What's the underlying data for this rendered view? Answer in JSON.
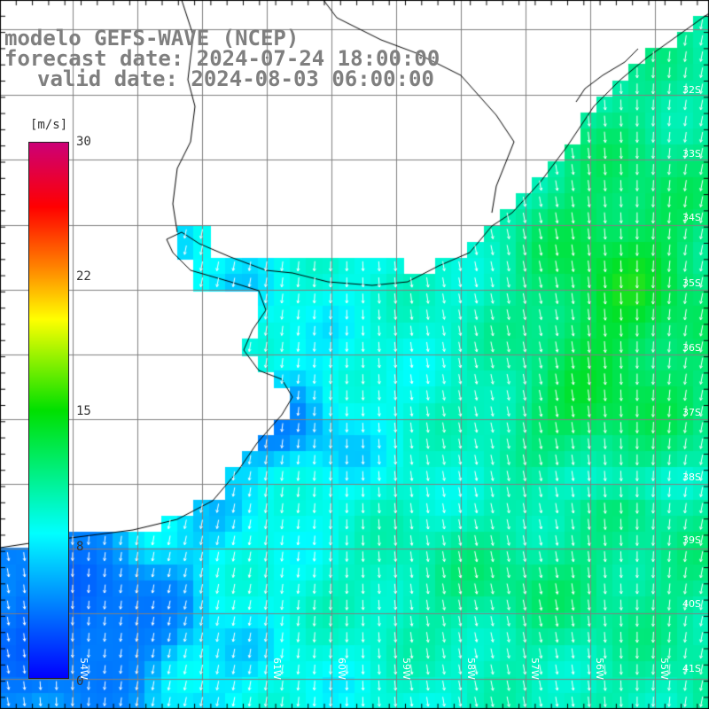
{
  "title": {
    "model": "modelo GEFS-WAVE (NCEP)",
    "forecast": "forecast date: 2024-07-24 18:00:00",
    "valid": "valid date: 2024-08-03 06:00:00"
  },
  "colorbar": {
    "unit": "[m/s]",
    "ticks": [
      "30",
      "22",
      "15",
      "8",
      "0"
    ],
    "colors": [
      "#0000ff",
      "#00ffff",
      "#00e000",
      "#ffff00",
      "#ff8000",
      "#ff0000",
      "#cc0077"
    ]
  },
  "lat_labels": [
    "32S",
    "33S",
    "34S",
    "35S",
    "36S",
    "37S",
    "38S",
    "39S",
    "40S",
    "41S"
  ],
  "lon_labels": [
    "61W",
    "60W",
    "59W",
    "58W",
    "57W",
    "56W",
    "55W",
    "54W"
  ]
}
